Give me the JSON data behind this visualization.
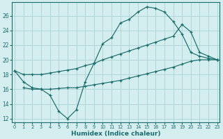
{
  "xlabel": "Humidex (Indice chaleur)",
  "bg_color": "#d4eeef",
  "grid_color": "#afd6d8",
  "line_color": "#1a6b6b",
  "x_ticks": [
    0,
    1,
    2,
    3,
    4,
    5,
    6,
    7,
    8,
    9,
    10,
    11,
    12,
    13,
    14,
    15,
    16,
    17,
    18,
    19,
    20,
    21,
    22,
    23
  ],
  "y_ticks": [
    12,
    14,
    16,
    18,
    20,
    22,
    24,
    26
  ],
  "xlim": [
    -0.3,
    23.3
  ],
  "ylim": [
    11.5,
    27.8
  ],
  "line1_x": [
    0,
    1,
    2,
    3,
    4,
    5,
    6,
    7,
    8,
    9,
    10,
    11,
    12,
    13,
    14,
    15,
    16,
    17,
    18,
    19,
    20,
    21,
    22,
    23
  ],
  "line1_y": [
    18.5,
    17.0,
    16.2,
    16.0,
    15.2,
    13.0,
    12.0,
    13.2,
    17.0,
    19.5,
    22.2,
    23.0,
    25.0,
    25.5,
    26.5,
    27.2,
    27.0,
    26.5,
    25.2,
    23.5,
    21.0,
    20.5,
    20.2,
    20.0
  ],
  "line2_x": [
    0,
    1,
    2,
    3,
    4,
    5,
    6,
    7,
    8,
    9,
    10,
    11,
    12,
    13,
    14,
    15,
    16,
    17,
    18,
    19,
    20,
    21,
    22,
    23
  ],
  "line2_y": [
    18.5,
    18.0,
    18.0,
    18.0,
    18.2,
    18.4,
    18.6,
    18.8,
    19.2,
    19.5,
    20.0,
    20.4,
    20.8,
    21.2,
    21.6,
    22.0,
    22.4,
    22.8,
    23.2,
    24.8,
    23.8,
    21.0,
    20.5,
    20.0
  ],
  "line3_x": [
    1,
    2,
    3,
    4,
    5,
    6,
    7,
    8,
    9,
    10,
    11,
    12,
    13,
    14,
    15,
    16,
    17,
    18,
    19,
    20,
    21,
    22,
    23
  ],
  "line3_y": [
    16.2,
    16.0,
    16.0,
    16.0,
    16.1,
    16.2,
    16.2,
    16.4,
    16.6,
    16.8,
    17.0,
    17.2,
    17.5,
    17.8,
    18.1,
    18.4,
    18.7,
    19.0,
    19.4,
    19.8,
    20.0,
    20.0,
    20.0
  ]
}
